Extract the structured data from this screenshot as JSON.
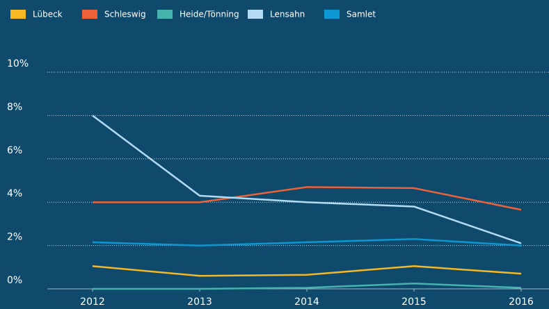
{
  "chart_data": {
    "type": "line",
    "categories": [
      "2012",
      "2013",
      "2014",
      "2015",
      "2016"
    ],
    "series": [
      {
        "name": "Lübeck",
        "color": "#f6b923",
        "values": [
          1.05,
          0.6,
          0.65,
          1.05,
          0.7
        ]
      },
      {
        "name": "Schleswig",
        "color": "#ee6239",
        "values": [
          4.0,
          4.0,
          4.7,
          4.65,
          3.65
        ]
      },
      {
        "name": "Heide/Tönning",
        "color": "#47b3ad",
        "values": [
          0.0,
          0.0,
          0.05,
          0.25,
          0.05
        ]
      },
      {
        "name": "Lensahn",
        "color": "#b3dcf3",
        "values": [
          8.0,
          4.3,
          4.0,
          3.8,
          2.1
        ]
      },
      {
        "name": "Samlet",
        "color": "#0d97d2",
        "values": [
          2.15,
          2.0,
          2.15,
          2.3,
          2.0
        ]
      }
    ],
    "ylim": [
      0,
      10
    ],
    "yticks": [
      {
        "value": 0,
        "label": "0%"
      },
      {
        "value": 2,
        "label": "2%"
      },
      {
        "value": 4,
        "label": "4%"
      },
      {
        "value": 6,
        "label": "6%"
      },
      {
        "value": 8,
        "label": "8%"
      },
      {
        "value": 10,
        "label": "10%"
      }
    ],
    "grid": true,
    "legend": "top-left"
  }
}
